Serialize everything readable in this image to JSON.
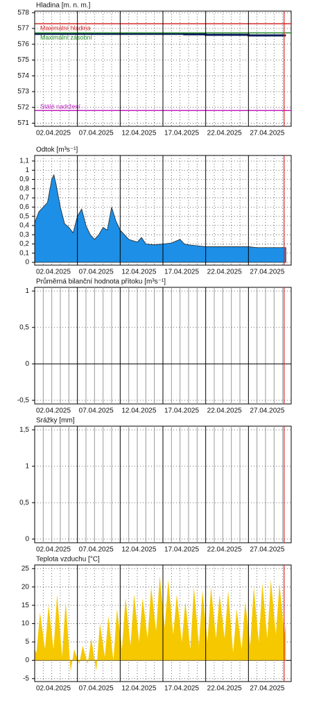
{
  "chart_data": [
    {
      "type": "line",
      "title": "Hladina [m. n. m.]",
      "xlim": [
        "2025-04-02",
        "2025-05-02"
      ],
      "xticks": [
        {
          "value": "2025-04-02",
          "label": "02.04.2025"
        },
        {
          "value": "2025-04-07",
          "label": "07.04.2025"
        },
        {
          "value": "2025-04-12",
          "label": "12.04.2025"
        },
        {
          "value": "2025-04-17",
          "label": "17.04.2025"
        },
        {
          "value": "2025-04-22",
          "label": "22.04.2025"
        },
        {
          "value": "2025-04-27",
          "label": "27.04.2025"
        }
      ],
      "xminorticks": [
        "2025-04-03",
        "2025-04-04",
        "2025-04-05",
        "2025-04-06",
        "2025-04-08",
        "2025-04-09",
        "2025-04-10",
        "2025-04-11",
        "2025-04-13",
        "2025-04-14",
        "2025-04-15",
        "2025-04-16",
        "2025-04-18",
        "2025-04-19",
        "2025-04-20",
        "2025-04-21",
        "2025-04-23",
        "2025-04-24",
        "2025-04-25",
        "2025-04-26",
        "2025-04-28",
        "2025-04-29",
        "2025-04-30",
        "2025-05-01"
      ],
      "ylim": [
        570.8,
        578.1
      ],
      "yticks": [
        571,
        572,
        573,
        574,
        575,
        576,
        577,
        578
      ],
      "now": "2025-05-01 04:00",
      "now_color": "#e02020",
      "hlines": [
        {
          "label": "Maximální hladina",
          "value": 577.3,
          "color": "#d42a2a"
        },
        {
          "label": "Maximální zásobní",
          "value": 576.72,
          "color": "#2a8a2a"
        },
        {
          "label": "Stálé nadržení",
          "value": 571.8,
          "color": "#c020c0"
        }
      ],
      "series": [
        {
          "color": "#0a1a5a",
          "x": [
            "2025-04-02",
            "2025-04-19 12:00",
            "2025-04-19 12:00",
            "2025-04-22",
            "2025-04-22",
            "2025-04-27",
            "2025-04-27",
            "2025-05-01 09:00"
          ],
          "values": [
            576.66,
            576.66,
            576.63,
            576.63,
            576.6,
            576.6,
            576.56,
            576.56
          ]
        }
      ]
    },
    {
      "type": "area",
      "title": "Odtok [m³s⁻¹]",
      "xlim": [
        "2025-04-02",
        "2025-05-02"
      ],
      "xticks": [
        {
          "value": "2025-04-02",
          "label": "02.04.2025"
        },
        {
          "value": "2025-04-07",
          "label": "07.04.2025"
        },
        {
          "value": "2025-04-12",
          "label": "12.04.2025"
        },
        {
          "value": "2025-04-17",
          "label": "17.04.2025"
        },
        {
          "value": "2025-04-22",
          "label": "22.04.2025"
        },
        {
          "value": "2025-04-27",
          "label": "27.04.2025"
        }
      ],
      "xminorticks": [
        "2025-04-03",
        "2025-04-04",
        "2025-04-05",
        "2025-04-06",
        "2025-04-08",
        "2025-04-09",
        "2025-04-10",
        "2025-04-11",
        "2025-04-13",
        "2025-04-14",
        "2025-04-15",
        "2025-04-16",
        "2025-04-18",
        "2025-04-19",
        "2025-04-20",
        "2025-04-21",
        "2025-04-23",
        "2025-04-24",
        "2025-04-25",
        "2025-04-26",
        "2025-04-28",
        "2025-04-29",
        "2025-04-30",
        "2025-05-01"
      ],
      "ylim": [
        -0.03,
        1.16
      ],
      "yticks": [
        0,
        {
          "value": 0.1,
          "label": "0,1"
        },
        {
          "value": 0.2,
          "label": "0,2"
        },
        {
          "value": 0.3,
          "label": "0,3"
        },
        {
          "value": 0.4,
          "label": "0,4"
        },
        {
          "value": 0.5,
          "label": "0,5"
        },
        {
          "value": 0.6,
          "label": "0,6"
        },
        {
          "value": 0.7,
          "label": "0,7"
        },
        {
          "value": 0.8,
          "label": "0,8"
        },
        {
          "value": 0.9,
          "label": "0,9"
        },
        1,
        {
          "value": 1.1,
          "label": "1,1"
        }
      ],
      "now": "2025-05-01 04:00",
      "now_color": "#e02020",
      "series": [
        {
          "color": "#1e8fe6",
          "x": [
            "2025-04-02",
            "2025-04-02 12:00",
            "2025-04-03",
            "2025-04-03 12:00",
            "2025-04-04",
            "2025-04-04 06:00",
            "2025-04-04 12:00",
            "2025-04-05",
            "2025-04-05 12:00",
            "2025-04-06",
            "2025-04-06 12:00",
            "2025-04-07",
            "2025-04-07 12:00",
            "2025-04-08",
            "2025-04-08 12:00",
            "2025-04-09",
            "2025-04-09 12:00",
            "2025-04-10",
            "2025-04-10 12:00",
            "2025-04-11",
            "2025-04-11 12:00",
            "2025-04-12",
            "2025-04-12 12:00",
            "2025-04-13",
            "2025-04-14",
            "2025-04-14 12:00",
            "2025-04-15",
            "2025-04-16",
            "2025-04-17",
            "2025-04-18",
            "2025-04-19",
            "2025-04-19 12:00",
            "2025-04-20",
            "2025-04-21",
            "2025-04-22",
            "2025-04-27",
            "2025-04-28",
            "2025-05-01 09:00"
          ],
          "values": [
            0.43,
            0.55,
            0.6,
            0.65,
            0.9,
            0.95,
            0.85,
            0.6,
            0.42,
            0.38,
            0.32,
            0.5,
            0.58,
            0.4,
            0.3,
            0.25,
            0.3,
            0.38,
            0.35,
            0.6,
            0.45,
            0.35,
            0.3,
            0.25,
            0.22,
            0.27,
            0.2,
            0.19,
            0.2,
            0.21,
            0.25,
            0.2,
            0.19,
            0.18,
            0.17,
            0.17,
            0.16,
            0.16
          ]
        }
      ]
    },
    {
      "type": "line",
      "title": "Průměrná bilanční hodnota přítoku   [m³s⁻¹]",
      "xlim": [
        "2025-04-02",
        "2025-05-02"
      ],
      "xticks": [
        {
          "value": "2025-04-02",
          "label": "02.04.2025"
        },
        {
          "value": "2025-04-07",
          "label": "07.04.2025"
        },
        {
          "value": "2025-04-12",
          "label": "12.04.2025"
        },
        {
          "value": "2025-04-17",
          "label": "17.04.2025"
        },
        {
          "value": "2025-04-22",
          "label": "22.04.2025"
        },
        {
          "value": "2025-04-27",
          "label": "27.04.2025"
        }
      ],
      "xminorticks": [
        "2025-04-03",
        "2025-04-04",
        "2025-04-05",
        "2025-04-06",
        "2025-04-08",
        "2025-04-09",
        "2025-04-10",
        "2025-04-11",
        "2025-04-13",
        "2025-04-14",
        "2025-04-15",
        "2025-04-16",
        "2025-04-18",
        "2025-04-19",
        "2025-04-20",
        "2025-04-21",
        "2025-04-23",
        "2025-04-24",
        "2025-04-25",
        "2025-04-26",
        "2025-04-28",
        "2025-04-29",
        "2025-04-30",
        "2025-05-01"
      ],
      "minor_solid": true,
      "ylim": [
        -0.55,
        1.05
      ],
      "yticks": [
        {
          "value": -0.5,
          "label": "-0,5"
        },
        0,
        {
          "value": 0.5,
          "label": "0,5"
        },
        1
      ],
      "zero_line": true,
      "now": "2025-05-01 04:00",
      "now_color": "#e02020",
      "series": []
    },
    {
      "type": "bar",
      "title": "Srážky [mm]",
      "xlim": [
        "2025-04-02",
        "2025-05-02"
      ],
      "xticks": [
        {
          "value": "2025-04-02",
          "label": "02.04.2025"
        },
        {
          "value": "2025-04-07",
          "label": "07.04.2025"
        },
        {
          "value": "2025-04-12",
          "label": "12.04.2025"
        },
        {
          "value": "2025-04-17",
          "label": "17.04.2025"
        },
        {
          "value": "2025-04-22",
          "label": "22.04.2025"
        },
        {
          "value": "2025-04-27",
          "label": "27.04.2025"
        }
      ],
      "xminorticks": [
        "2025-04-03",
        "2025-04-04",
        "2025-04-05",
        "2025-04-06",
        "2025-04-08",
        "2025-04-09",
        "2025-04-10",
        "2025-04-11",
        "2025-04-13",
        "2025-04-14",
        "2025-04-15",
        "2025-04-16",
        "2025-04-18",
        "2025-04-19",
        "2025-04-20",
        "2025-04-21",
        "2025-04-23",
        "2025-04-24",
        "2025-04-25",
        "2025-04-26",
        "2025-04-28",
        "2025-04-29",
        "2025-04-30",
        "2025-05-01"
      ],
      "minor_solid": true,
      "ylim": [
        -0.05,
        1.55
      ],
      "yticks": [
        0,
        {
          "value": 0.5,
          "label": "0,5"
        },
        1,
        {
          "value": 1.5,
          "label": "1,5"
        }
      ],
      "now": "2025-05-01 04:00",
      "now_color": "#e02020",
      "series": []
    },
    {
      "type": "area",
      "title": "Teplota vzduchu [°C]",
      "xlim": [
        "2025-04-02",
        "2025-05-02"
      ],
      "xticks": [
        {
          "value": "2025-04-02",
          "label": "02.04.2025"
        },
        {
          "value": "2025-04-07",
          "label": "07.04.2025"
        },
        {
          "value": "2025-04-12",
          "label": "12.04.2025"
        },
        {
          "value": "2025-04-17",
          "label": "17.04.2025"
        },
        {
          "value": "2025-04-22",
          "label": "22.04.2025"
        },
        {
          "value": "2025-04-27",
          "label": "27.04.2025"
        }
      ],
      "xminorticks": [
        "2025-04-03",
        "2025-04-04",
        "2025-04-05",
        "2025-04-06",
        "2025-04-08",
        "2025-04-09",
        "2025-04-10",
        "2025-04-11",
        "2025-04-13",
        "2025-04-14",
        "2025-04-15",
        "2025-04-16",
        "2025-04-18",
        "2025-04-19",
        "2025-04-20",
        "2025-04-21",
        "2025-04-23",
        "2025-04-24",
        "2025-04-25",
        "2025-04-26",
        "2025-04-28",
        "2025-04-29",
        "2025-04-30",
        "2025-05-01"
      ],
      "ylim": [
        -5.8,
        26
      ],
      "yticks": [
        -5,
        0,
        5,
        10,
        15,
        20,
        25
      ],
      "zero_line": true,
      "now": "2025-05-01 04:00",
      "now_color": "#e02020",
      "series": [
        {
          "color": "#f5c800",
          "x": [
            "2025-04-02",
            "2025-04-02 05:00",
            "2025-04-02 15:00",
            "2025-04-03 05:00",
            "2025-04-03 15:00",
            "2025-04-04 05:00",
            "2025-04-04 15:00",
            "2025-04-05 05:00",
            "2025-04-05 15:00",
            "2025-04-06 05:00",
            "2025-04-06 15:00",
            "2025-04-07 05:00",
            "2025-04-07 15:00",
            "2025-04-08 05:00",
            "2025-04-08 15:00",
            "2025-04-09 05:00",
            "2025-04-09 15:00",
            "2025-04-10 05:00",
            "2025-04-10 15:00",
            "2025-04-11 05:00",
            "2025-04-11 15:00",
            "2025-04-12 05:00",
            "2025-04-12 15:00",
            "2025-04-13 05:00",
            "2025-04-13 15:00",
            "2025-04-14 05:00",
            "2025-04-14 15:00",
            "2025-04-15 05:00",
            "2025-04-15 15:00",
            "2025-04-16 05:00",
            "2025-04-16 15:00",
            "2025-04-17 05:00",
            "2025-04-17 15:00",
            "2025-04-18 05:00",
            "2025-04-18 15:00",
            "2025-04-19 05:00",
            "2025-04-19 15:00",
            "2025-04-20 05:00",
            "2025-04-20 15:00",
            "2025-04-21 05:00",
            "2025-04-21 15:00",
            "2025-04-22 05:00",
            "2025-04-22 15:00",
            "2025-04-23 05:00",
            "2025-04-23 15:00",
            "2025-04-24 05:00",
            "2025-04-24 15:00",
            "2025-04-25 05:00",
            "2025-04-25 15:00",
            "2025-04-26 05:00",
            "2025-04-26 15:00",
            "2025-04-27 05:00",
            "2025-04-27 15:00",
            "2025-04-28 05:00",
            "2025-04-28 15:00",
            "2025-04-29 05:00",
            "2025-04-29 15:00",
            "2025-04-30 05:00",
            "2025-04-30 15:00",
            "2025-05-01 05:00",
            "2025-05-01 09:00"
          ],
          "values": [
            3,
            2,
            13,
            3,
            15,
            3,
            18,
            1,
            16,
            -3,
            3,
            -1,
            4,
            -1,
            6,
            -3,
            10,
            1,
            12,
            0,
            14,
            3,
            17,
            4,
            18,
            5,
            17,
            6,
            20,
            8,
            23,
            9,
            22,
            7,
            18,
            5,
            16,
            3,
            20,
            4,
            19,
            5,
            20,
            6,
            18,
            6,
            19,
            2,
            14,
            3,
            16,
            4,
            20,
            5,
            21,
            6,
            22,
            7,
            21,
            7,
            10
          ]
        }
      ]
    }
  ]
}
